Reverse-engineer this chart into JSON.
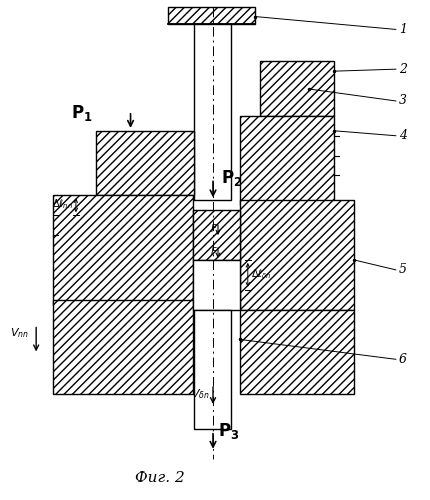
{
  "fig_width": 4.31,
  "fig_height": 5.0,
  "dpi": 100,
  "background": "#ffffff",
  "title": "Фиг. 2",
  "lc": "#000000",
  "fc": "#ffffff",
  "lw": 1.0
}
